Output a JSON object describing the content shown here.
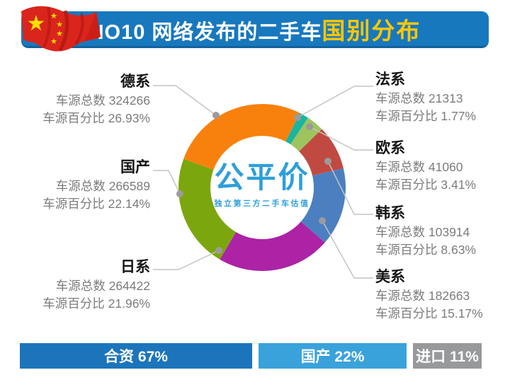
{
  "header": {
    "title_main": "NO10 网络发布的二手车",
    "title_accent": "国别分布",
    "banner_color": "#1878BE",
    "accent_color": "#FFC600"
  },
  "center_logo": {
    "name": "公平价",
    "tagline": "独立第三方二手车估值",
    "color": "#2E9FD9"
  },
  "chart_data": {
    "type": "pie",
    "subtype": "donut",
    "title": "NO10 网络发布的二手车国别分布",
    "unit_labels": {
      "count": "车源总数",
      "percent": "车源百分比"
    },
    "series": [
      {
        "name": "法系",
        "count": "21313",
        "percent": "1.77%",
        "value": 1.77,
        "color": "#1AB5A0"
      },
      {
        "name": "欧系",
        "count": "41060",
        "percent": "3.41%",
        "value": 3.41,
        "color": "#9DC45F"
      },
      {
        "name": "韩系",
        "count": "103914",
        "percent": "8.63%",
        "value": 8.63,
        "color": "#C04A42"
      },
      {
        "name": "美系",
        "count": "182663",
        "percent": "15.17%",
        "value": 15.17,
        "color": "#4C7FC0"
      },
      {
        "name": "日系",
        "count": "264422",
        "percent": "21.96%",
        "value": 21.96,
        "color": "#AC23A5"
      },
      {
        "name": "国产",
        "count": "266589",
        "percent": "22.14%",
        "value": 22.14,
        "color": "#7CA60D"
      },
      {
        "name": "德系",
        "count": "324266",
        "percent": "26.93%",
        "value": 26.93,
        "color": "#F8810D"
      }
    ],
    "layout": {
      "start_angle": 27,
      "outer_radius": 118,
      "inner_radius": 73,
      "legend": "none",
      "grid": false
    }
  },
  "footer_bars": [
    {
      "text": "合资 67%",
      "color": "#1C75BB"
    },
    {
      "text": "国产 22%",
      "color": "#3AA2DB"
    },
    {
      "text": "进口 11%",
      "color": "#97999B"
    }
  ]
}
